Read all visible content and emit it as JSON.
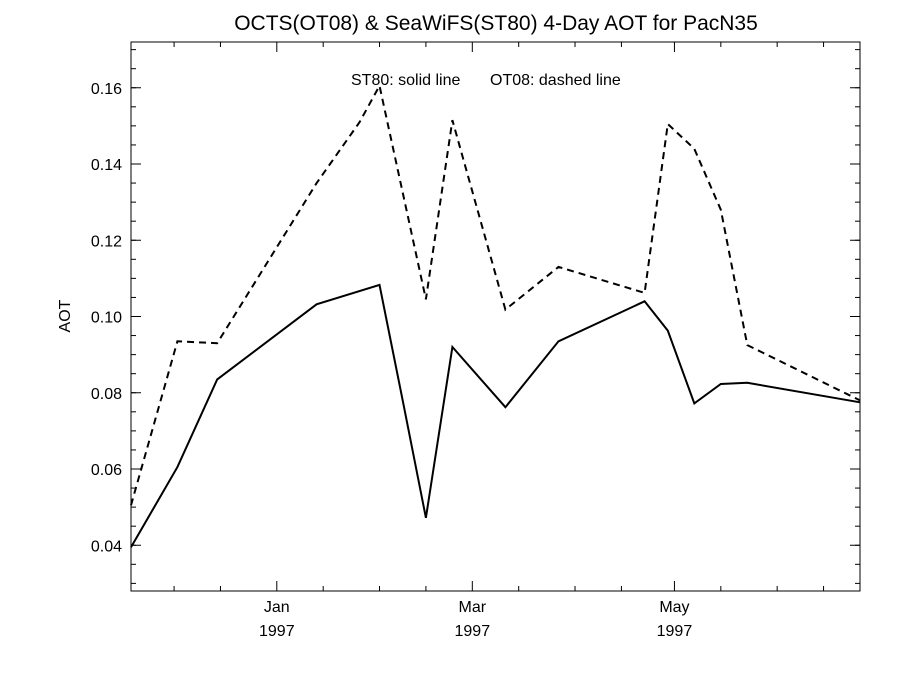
{
  "chart_data": {
    "type": "line",
    "title": "OCTS(OT08) & SeaWiFS(ST80) 4-Day AOT for PacN35",
    "xlabel": "",
    "ylabel": "AOT",
    "annotation_solid": "ST80: solid line",
    "annotation_dashed": "OT08: dashed line",
    "xlim": [
      "1996-11-18",
      "1997-06-26"
    ],
    "ylim": [
      0.028,
      0.172
    ],
    "yticks": [
      {
        "value": 0.04,
        "label": "0.04"
      },
      {
        "value": 0.06,
        "label": "0.06"
      },
      {
        "value": 0.08,
        "label": "0.08"
      },
      {
        "value": 0.1,
        "label": "0.10"
      },
      {
        "value": 0.12,
        "label": "0.12"
      },
      {
        "value": 0.14,
        "label": "0.14"
      },
      {
        "value": 0.16,
        "label": "0.16"
      }
    ],
    "xticks": [
      {
        "date": "1997-01-01",
        "month": "Jan",
        "year": "1997"
      },
      {
        "date": "1997-03-01",
        "month": "Mar",
        "year": "1997"
      },
      {
        "date": "1997-05-01",
        "month": "May",
        "year": "1997"
      }
    ],
    "grid": false,
    "series": [
      {
        "name": "ST80",
        "style": "solid",
        "color": "#000000",
        "points": [
          {
            "x": "1996-11-18",
            "y": 0.0395
          },
          {
            "x": "1996-12-02",
            "y": 0.0605
          },
          {
            "x": "1996-12-14",
            "y": 0.0835
          },
          {
            "x": "1997-01-13",
            "y": 0.1032
          },
          {
            "x": "1997-02-01",
            "y": 0.1083
          },
          {
            "x": "1997-02-08",
            "y": 0.078
          },
          {
            "x": "1997-02-15",
            "y": 0.0472
          },
          {
            "x": "1997-02-23",
            "y": 0.092
          },
          {
            "x": "1997-03-11",
            "y": 0.0762
          },
          {
            "x": "1997-03-27",
            "y": 0.0935
          },
          {
            "x": "1997-04-22",
            "y": 0.104
          },
          {
            "x": "1997-04-29",
            "y": 0.0963
          },
          {
            "x": "1997-05-07",
            "y": 0.0772
          },
          {
            "x": "1997-05-15",
            "y": 0.0823
          },
          {
            "x": "1997-05-23",
            "y": 0.0826
          },
          {
            "x": "1997-06-26",
            "y": 0.0775
          }
        ]
      },
      {
        "name": "OT08",
        "style": "dashed",
        "color": "#000000",
        "points": [
          {
            "x": "1996-11-18",
            "y": 0.0505
          },
          {
            "x": "1996-12-02",
            "y": 0.0935
          },
          {
            "x": "1996-12-14",
            "y": 0.093
          },
          {
            "x": "1997-01-13",
            "y": 0.135
          },
          {
            "x": "1997-01-26",
            "y": 0.151
          },
          {
            "x": "1997-02-01",
            "y": 0.1605
          },
          {
            "x": "1997-02-15",
            "y": 0.1045
          },
          {
            "x": "1997-02-23",
            "y": 0.1515
          },
          {
            "x": "1997-03-11",
            "y": 0.1018
          },
          {
            "x": "1997-03-27",
            "y": 0.113
          },
          {
            "x": "1997-04-22",
            "y": 0.1062
          },
          {
            "x": "1997-04-29",
            "y": 0.1505
          },
          {
            "x": "1997-05-07",
            "y": 0.144
          },
          {
            "x": "1997-05-15",
            "y": 0.128
          },
          {
            "x": "1997-05-23",
            "y": 0.0925
          },
          {
            "x": "1997-06-26",
            "y": 0.078
          }
        ]
      }
    ]
  }
}
